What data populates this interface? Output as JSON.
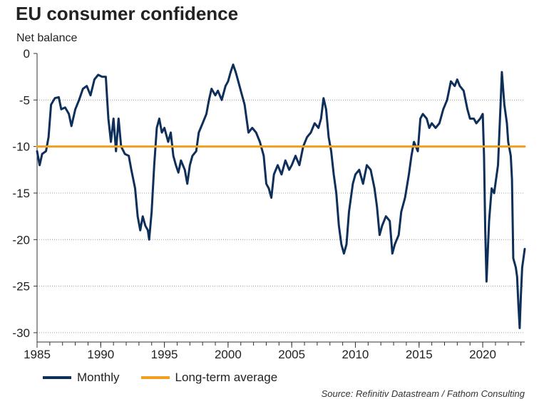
{
  "title": "EU consumer confidence",
  "subtitle": "Net balance",
  "source": "Source: Refinitiv Datastream / Fathom Consulting",
  "legend": {
    "monthly": "Monthly",
    "average": "Long-term average"
  },
  "colors": {
    "monthly": "#0e2f5a",
    "average": "#f0a01e",
    "grid": "#9a9a9a",
    "axis": "#333333"
  },
  "chart_data": {
    "type": "line",
    "xlim": [
      1985,
      2023.3
    ],
    "ylim": [
      -31,
      0
    ],
    "x_ticks": [
      1985,
      1990,
      1995,
      2000,
      2005,
      2010,
      2015,
      2020
    ],
    "y_ticks": [
      0,
      -5,
      -10,
      -15,
      -20,
      -25,
      -30
    ],
    "grid": "horizontal dotted",
    "legend_position": "bottom-left",
    "series": [
      {
        "name": "Monthly",
        "color": "#0e2f5a",
        "points": [
          [
            1985.0,
            -10.5
          ],
          [
            1985.2,
            -12.0
          ],
          [
            1985.4,
            -10.8
          ],
          [
            1985.7,
            -10.5
          ],
          [
            1985.9,
            -9.0
          ],
          [
            1986.1,
            -5.5
          ],
          [
            1986.4,
            -4.8
          ],
          [
            1986.7,
            -4.7
          ],
          [
            1986.9,
            -6.0
          ],
          [
            1987.2,
            -5.8
          ],
          [
            1987.5,
            -6.5
          ],
          [
            1987.7,
            -7.8
          ],
          [
            1988.0,
            -6.0
          ],
          [
            1988.3,
            -5.0
          ],
          [
            1988.6,
            -3.8
          ],
          [
            1988.9,
            -3.5
          ],
          [
            1989.2,
            -4.5
          ],
          [
            1989.5,
            -2.8
          ],
          [
            1989.8,
            -2.3
          ],
          [
            1990.1,
            -2.5
          ],
          [
            1990.4,
            -2.5
          ],
          [
            1990.6,
            -7.0
          ],
          [
            1990.8,
            -9.5
          ],
          [
            1991.0,
            -7.0
          ],
          [
            1991.2,
            -10.5
          ],
          [
            1991.4,
            -7.0
          ],
          [
            1991.6,
            -10.0
          ],
          [
            1991.9,
            -10.8
          ],
          [
            1992.2,
            -11.0
          ],
          [
            1992.4,
            -12.5
          ],
          [
            1992.7,
            -14.5
          ],
          [
            1992.9,
            -17.5
          ],
          [
            1993.1,
            -19.0
          ],
          [
            1993.3,
            -17.5
          ],
          [
            1993.5,
            -18.5
          ],
          [
            1993.7,
            -19.0
          ],
          [
            1993.8,
            -20.0
          ],
          [
            1994.0,
            -17.0
          ],
          [
            1994.2,
            -12.0
          ],
          [
            1994.4,
            -8.0
          ],
          [
            1994.6,
            -7.0
          ],
          [
            1994.8,
            -8.5
          ],
          [
            1995.0,
            -8.0
          ],
          [
            1995.3,
            -9.5
          ],
          [
            1995.5,
            -8.5
          ],
          [
            1995.7,
            -11.0
          ],
          [
            1995.9,
            -12.0
          ],
          [
            1996.1,
            -12.8
          ],
          [
            1996.3,
            -11.5
          ],
          [
            1996.6,
            -12.5
          ],
          [
            1996.8,
            -14.0
          ],
          [
            1997.0,
            -12.0
          ],
          [
            1997.2,
            -11.0
          ],
          [
            1997.5,
            -10.5
          ],
          [
            1997.7,
            -8.5
          ],
          [
            1998.0,
            -7.5
          ],
          [
            1998.3,
            -6.5
          ],
          [
            1998.5,
            -5.0
          ],
          [
            1998.7,
            -3.8
          ],
          [
            1999.0,
            -4.5
          ],
          [
            1999.2,
            -4.0
          ],
          [
            1999.5,
            -5.0
          ],
          [
            1999.8,
            -3.5
          ],
          [
            2000.0,
            -3.0
          ],
          [
            2000.2,
            -2.0
          ],
          [
            2000.4,
            -1.2
          ],
          [
            2000.6,
            -2.0
          ],
          [
            2000.8,
            -3.0
          ],
          [
            2001.0,
            -4.0
          ],
          [
            2001.3,
            -5.5
          ],
          [
            2001.6,
            -8.5
          ],
          [
            2001.9,
            -8.0
          ],
          [
            2002.2,
            -8.5
          ],
          [
            2002.5,
            -9.5
          ],
          [
            2002.8,
            -11.0
          ],
          [
            2003.0,
            -14.0
          ],
          [
            2003.2,
            -14.5
          ],
          [
            2003.4,
            -15.5
          ],
          [
            2003.6,
            -13.0
          ],
          [
            2003.9,
            -12.0
          ],
          [
            2004.2,
            -13.0
          ],
          [
            2004.5,
            -11.5
          ],
          [
            2004.8,
            -12.5
          ],
          [
            2005.0,
            -12.0
          ],
          [
            2005.3,
            -11.0
          ],
          [
            2005.6,
            -12.0
          ],
          [
            2005.9,
            -10.0
          ],
          [
            2006.2,
            -9.0
          ],
          [
            2006.5,
            -8.5
          ],
          [
            2006.8,
            -7.5
          ],
          [
            2007.1,
            -8.0
          ],
          [
            2007.3,
            -7.0
          ],
          [
            2007.5,
            -4.8
          ],
          [
            2007.7,
            -6.0
          ],
          [
            2007.9,
            -9.0
          ],
          [
            2008.1,
            -10.5
          ],
          [
            2008.3,
            -13.0
          ],
          [
            2008.5,
            -15.0
          ],
          [
            2008.7,
            -18.5
          ],
          [
            2008.9,
            -20.5
          ],
          [
            2009.1,
            -21.5
          ],
          [
            2009.3,
            -20.5
          ],
          [
            2009.5,
            -17.0
          ],
          [
            2009.8,
            -14.0
          ],
          [
            2010.0,
            -13.0
          ],
          [
            2010.3,
            -12.5
          ],
          [
            2010.6,
            -14.0
          ],
          [
            2010.9,
            -12.0
          ],
          [
            2011.2,
            -12.5
          ],
          [
            2011.5,
            -14.5
          ],
          [
            2011.7,
            -16.5
          ],
          [
            2011.9,
            -19.5
          ],
          [
            2012.1,
            -18.5
          ],
          [
            2012.4,
            -17.5
          ],
          [
            2012.7,
            -18.0
          ],
          [
            2012.9,
            -21.5
          ],
          [
            2013.1,
            -20.5
          ],
          [
            2013.4,
            -19.5
          ],
          [
            2013.6,
            -17.0
          ],
          [
            2013.9,
            -15.5
          ],
          [
            2014.2,
            -13.0
          ],
          [
            2014.4,
            -11.0
          ],
          [
            2014.6,
            -9.5
          ],
          [
            2014.9,
            -10.5
          ],
          [
            2015.1,
            -7.0
          ],
          [
            2015.3,
            -6.5
          ],
          [
            2015.6,
            -7.0
          ],
          [
            2015.8,
            -8.0
          ],
          [
            2016.0,
            -7.5
          ],
          [
            2016.3,
            -8.0
          ],
          [
            2016.6,
            -7.5
          ],
          [
            2016.9,
            -6.0
          ],
          [
            2017.2,
            -5.0
          ],
          [
            2017.5,
            -3.0
          ],
          [
            2017.8,
            -3.5
          ],
          [
            2018.0,
            -2.8
          ],
          [
            2018.2,
            -3.5
          ],
          [
            2018.5,
            -4.0
          ],
          [
            2018.8,
            -6.0
          ],
          [
            2019.0,
            -7.0
          ],
          [
            2019.3,
            -7.0
          ],
          [
            2019.5,
            -7.5
          ],
          [
            2019.8,
            -7.0
          ],
          [
            2020.0,
            -6.5
          ],
          [
            2020.1,
            -11.0
          ],
          [
            2020.2,
            -19.0
          ],
          [
            2020.3,
            -24.5
          ],
          [
            2020.5,
            -18.0
          ],
          [
            2020.7,
            -14.5
          ],
          [
            2020.9,
            -15.0
          ],
          [
            2021.0,
            -14.0
          ],
          [
            2021.2,
            -12.0
          ],
          [
            2021.4,
            -5.5
          ],
          [
            2021.5,
            -2.0
          ],
          [
            2021.7,
            -5.5
          ],
          [
            2021.9,
            -7.5
          ],
          [
            2022.0,
            -9.5
          ],
          [
            2022.2,
            -11.0
          ],
          [
            2022.3,
            -13.5
          ],
          [
            2022.4,
            -22.0
          ],
          [
            2022.6,
            -23.0
          ],
          [
            2022.7,
            -24.0
          ],
          [
            2022.8,
            -27.0
          ],
          [
            2022.9,
            -29.5
          ],
          [
            2023.0,
            -26.0
          ],
          [
            2023.1,
            -23.0
          ],
          [
            2023.3,
            -21.0
          ]
        ]
      },
      {
        "name": "Long-term average",
        "color": "#f0a01e",
        "points": [
          [
            1985.0,
            -10.0
          ],
          [
            2023.3,
            -10.0
          ]
        ]
      }
    ]
  }
}
